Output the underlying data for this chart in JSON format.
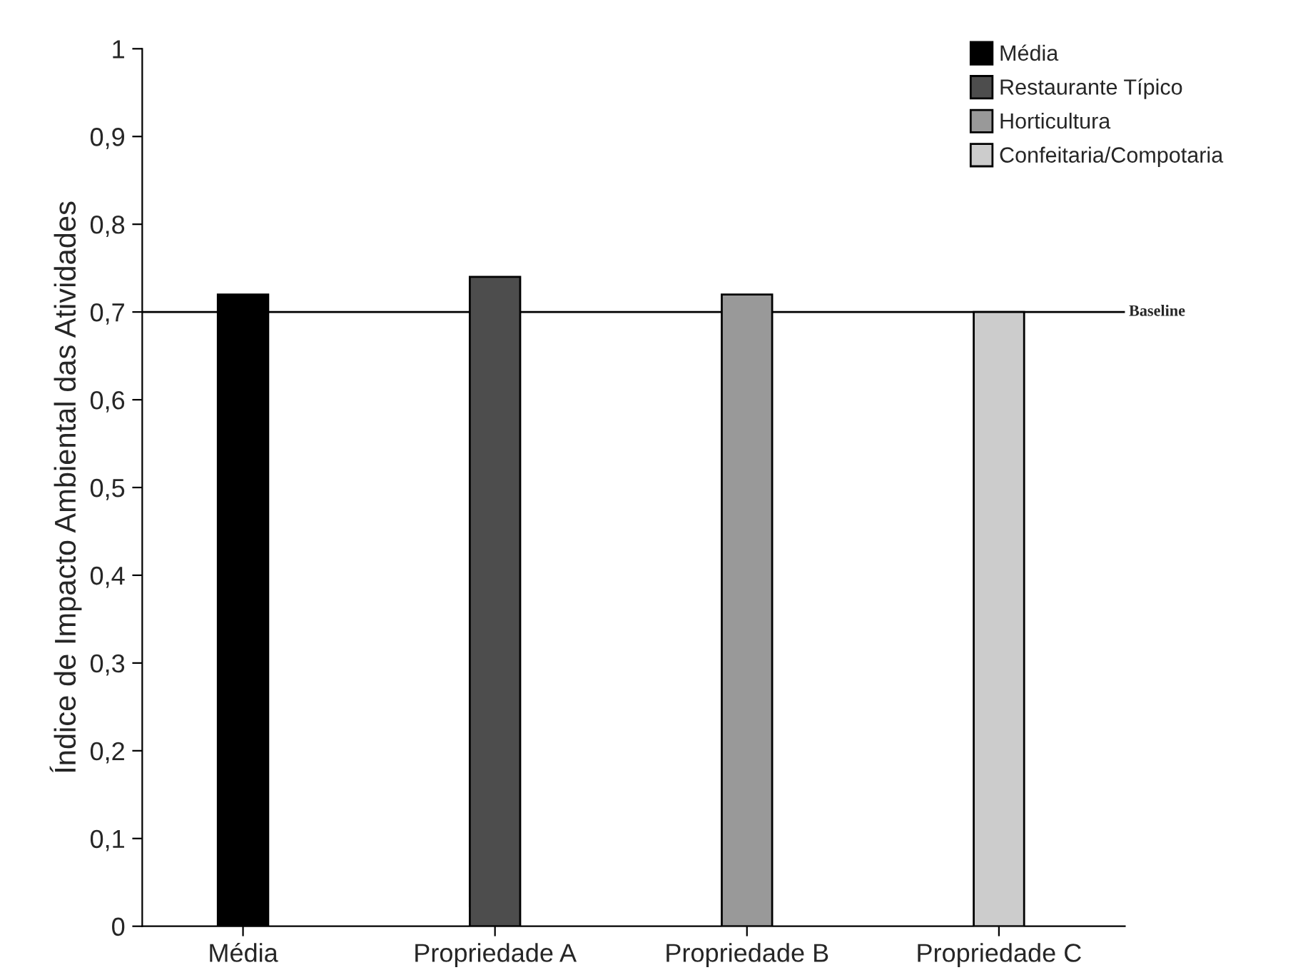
{
  "chart_data": {
    "type": "bar",
    "ylabel": "Índice de Impacto Ambiental das Atividades",
    "categories": [
      "Média",
      "Propriedade A",
      "Propriedade B",
      "Propriedade C"
    ],
    "series": [
      {
        "name": "Média",
        "color": "#000000",
        "values": [
          0.72,
          null,
          null,
          null
        ]
      },
      {
        "name": "Restaurante Típico",
        "color": "#4d4d4d",
        "values": [
          null,
          0.74,
          null,
          null
        ]
      },
      {
        "name": "Horticultura",
        "color": "#999999",
        "values": [
          null,
          null,
          0.72,
          null
        ]
      },
      {
        "name": "Confeitaria/Compotaria",
        "color": "#cccccc",
        "values": [
          null,
          null,
          null,
          0.7
        ]
      }
    ],
    "ylim": [
      0,
      1
    ],
    "yticks": [
      0,
      {
        "value": 0.1,
        "label": "0,1"
      },
      {
        "value": 0.2,
        "label": "0,2"
      },
      {
        "value": 0.3,
        "label": "0,3"
      },
      {
        "value": 0.4,
        "label": "0,4"
      },
      {
        "value": 0.5,
        "label": "0,5"
      },
      {
        "value": 0.6,
        "label": "0,6"
      },
      {
        "value": 0.7,
        "label": "0,7"
      },
      {
        "value": 0.8,
        "label": "0,8"
      },
      {
        "value": 0.9,
        "label": "0,9"
      },
      1
    ],
    "ref_lines": [
      {
        "axis": "y",
        "value": 0.7,
        "label": "Baseline",
        "color": "#000000"
      }
    ],
    "legend": "top right",
    "grid": false
  }
}
